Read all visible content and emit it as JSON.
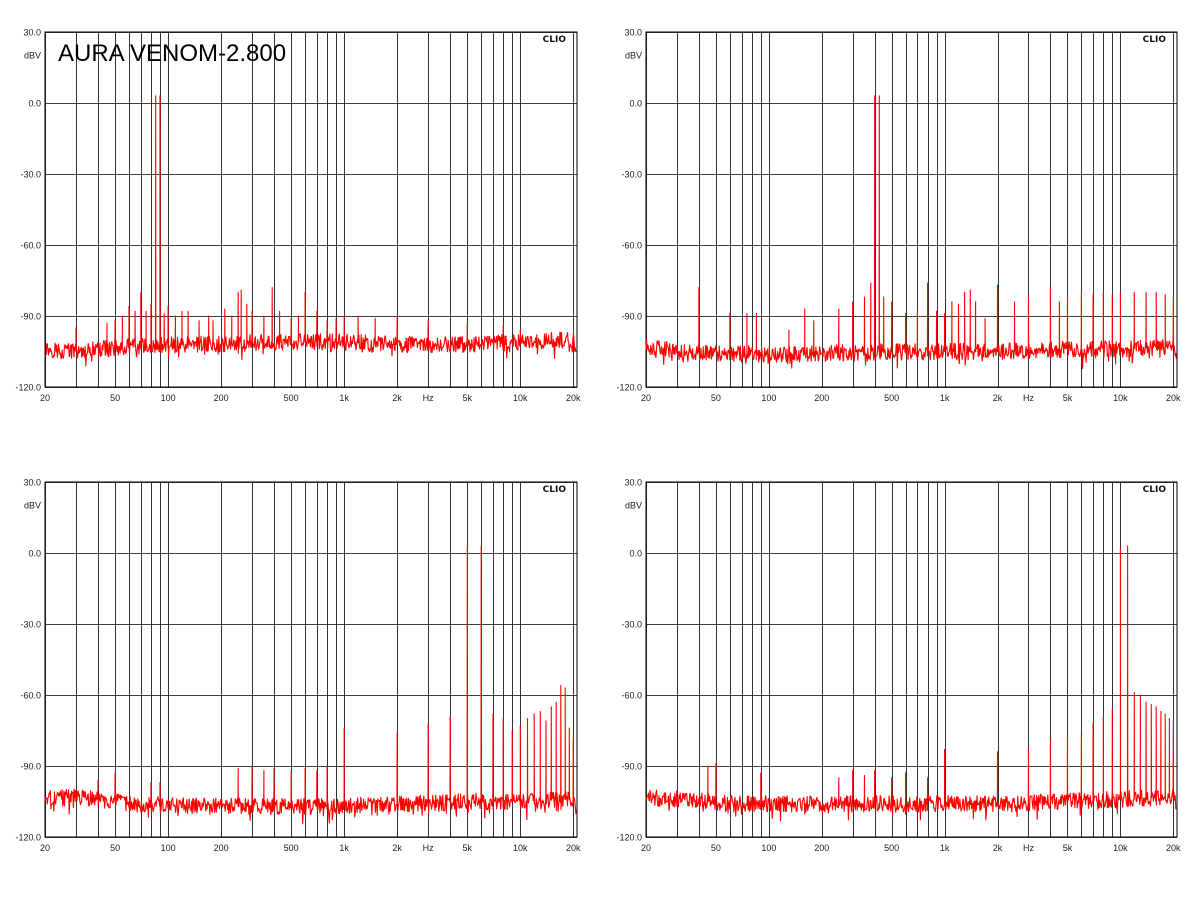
{
  "figure_title": "AURA VENOM-2.800",
  "brand_label": "CLIO",
  "colors": {
    "trace": "#ff0000",
    "grid": "#000000",
    "background": "#ffffff",
    "text": "#222222"
  },
  "y_tick_labels": [
    "30.0",
    "0.0",
    "-30.0",
    "-60.0",
    "-90.0",
    "-120.0"
  ],
  "y_unit_label": "dBV",
  "x_tick_labels": [
    "20",
    "50",
    "100",
    "200",
    "500",
    "1k",
    "2k",
    "Hz",
    "5k",
    "10k",
    "20k"
  ],
  "chart_data": [
    {
      "type": "line",
      "title": "AURA VENOM-2.800",
      "ylabel": "dBV",
      "xlabel": "Hz",
      "x_scale": "log",
      "xlim": [
        20,
        21000
      ],
      "ylim": [
        -120,
        30
      ],
      "grid": true,
      "legend": "none",
      "series": [
        {
          "color": "#ff0000",
          "floor": [
            [
              20,
              -104
            ],
            [
              30,
              -105
            ],
            [
              60,
              -103
            ],
            [
              150,
              -102
            ],
            [
              500,
              -101
            ],
            [
              1000,
              -101
            ],
            [
              2000,
              -102
            ],
            [
              5000,
              -102
            ],
            [
              10000,
              -101
            ],
            [
              20000,
              -100
            ],
            [
              21000,
              -104
            ]
          ],
          "peaks": [
            [
              85,
              3
            ],
            [
              90,
              3
            ],
            [
              30,
              -95
            ],
            [
              45,
              -93
            ],
            [
              50,
              -92
            ],
            [
              55,
              -90
            ],
            [
              60,
              -86
            ],
            [
              65,
              -88
            ],
            [
              70,
              -80
            ],
            [
              75,
              -88
            ],
            [
              80,
              -85
            ],
            [
              95,
              -89
            ],
            [
              100,
              -86
            ],
            [
              110,
              -90
            ],
            [
              120,
              -88
            ],
            [
              130,
              -88
            ],
            [
              150,
              -92
            ],
            [
              170,
              -90
            ],
            [
              180,
              -92
            ],
            [
              210,
              -87
            ],
            [
              230,
              -90
            ],
            [
              250,
              -80
            ],
            [
              260,
              -79
            ],
            [
              280,
              -85
            ],
            [
              300,
              -88
            ],
            [
              350,
              -90
            ],
            [
              390,
              -78
            ],
            [
              430,
              -88
            ],
            [
              500,
              -91
            ],
            [
              550,
              -90
            ],
            [
              600,
              -80
            ],
            [
              700,
              -88
            ],
            [
              800,
              -92
            ],
            [
              900,
              -91
            ],
            [
              1000,
              -90
            ],
            [
              1200,
              -90
            ],
            [
              1500,
              -91
            ],
            [
              2000,
              -90
            ],
            [
              3000,
              -92
            ],
            [
              5000,
              -93
            ],
            [
              8000,
              -94
            ],
            [
              10000,
              -96
            ],
            [
              15000,
              -97
            ],
            [
              20000,
              -98
            ]
          ]
        }
      ]
    },
    {
      "type": "line",
      "ylabel": "dBV",
      "xlabel": "Hz",
      "x_scale": "log",
      "xlim": [
        20,
        21000
      ],
      "ylim": [
        -120,
        30
      ],
      "grid": true,
      "legend": "none",
      "series": [
        {
          "color": "#ff0000",
          "floor": [
            [
              20,
              -103
            ],
            [
              30,
              -105
            ],
            [
              60,
              -106
            ],
            [
              150,
              -106
            ],
            [
              500,
              -105
            ],
            [
              1000,
              -105
            ],
            [
              2000,
              -105
            ],
            [
              5000,
              -104
            ],
            [
              10000,
              -104
            ],
            [
              20000,
              -103
            ],
            [
              21000,
              -106
            ]
          ],
          "peaks": [
            [
              400,
              3
            ],
            [
              425,
              3
            ],
            [
              40,
              -78
            ],
            [
              60,
              -89
            ],
            [
              75,
              -89
            ],
            [
              85,
              -89
            ],
            [
              130,
              -96
            ],
            [
              160,
              -87
            ],
            [
              180,
              -92
            ],
            [
              250,
              -87
            ],
            [
              300,
              -84
            ],
            [
              350,
              -82
            ],
            [
              380,
              -76
            ],
            [
              450,
              -82
            ],
            [
              500,
              -84
            ],
            [
              600,
              -89
            ],
            [
              700,
              -88
            ],
            [
              800,
              -76
            ],
            [
              900,
              -88
            ],
            [
              1000,
              -89
            ],
            [
              1100,
              -84
            ],
            [
              1200,
              -85
            ],
            [
              1300,
              -80
            ],
            [
              1400,
              -79
            ],
            [
              1500,
              -84
            ],
            [
              1700,
              -91
            ],
            [
              2000,
              -77
            ],
            [
              2500,
              -84
            ],
            [
              3000,
              -82
            ],
            [
              4000,
              -78
            ],
            [
              4500,
              -84
            ],
            [
              5000,
              -82
            ],
            [
              6000,
              -80
            ],
            [
              7000,
              -81
            ],
            [
              8000,
              -80
            ],
            [
              9000,
              -81
            ],
            [
              10000,
              -80
            ],
            [
              12000,
              -80
            ],
            [
              14000,
              -80
            ],
            [
              16000,
              -80
            ],
            [
              18000,
              -81
            ],
            [
              20000,
              -82
            ]
          ]
        }
      ]
    },
    {
      "type": "line",
      "ylabel": "dBV",
      "xlabel": "Hz",
      "x_scale": "log",
      "xlim": [
        20,
        21000
      ],
      "ylim": [
        -120,
        30
      ],
      "grid": true,
      "legend": "none",
      "series": [
        {
          "color": "#ff0000",
          "floor": [
            [
              20,
              -104
            ],
            [
              30,
              -103
            ],
            [
              60,
              -106
            ],
            [
              150,
              -107
            ],
            [
              500,
              -107
            ],
            [
              1000,
              -107
            ],
            [
              2000,
              -106
            ],
            [
              5000,
              -105
            ],
            [
              10000,
              -105
            ],
            [
              20000,
              -104
            ],
            [
              21000,
              -107
            ]
          ],
          "peaks": [
            [
              5000,
              3
            ],
            [
              6000,
              3
            ],
            [
              40,
              -96
            ],
            [
              50,
              -93
            ],
            [
              80,
              -97
            ],
            [
              90,
              -97
            ],
            [
              250,
              -91
            ],
            [
              300,
              -90
            ],
            [
              350,
              -92
            ],
            [
              400,
              -91
            ],
            [
              500,
              -92
            ],
            [
              600,
              -91
            ],
            [
              700,
              -92
            ],
            [
              800,
              -90
            ],
            [
              1000,
              -74
            ],
            [
              2000,
              -76
            ],
            [
              3000,
              -72
            ],
            [
              4000,
              -69
            ],
            [
              7000,
              -68
            ],
            [
              8000,
              -70
            ],
            [
              9000,
              -75
            ],
            [
              10000,
              -73
            ],
            [
              11000,
              -70
            ],
            [
              12000,
              -68
            ],
            [
              13000,
              -67
            ],
            [
              14000,
              -71
            ],
            [
              15000,
              -65
            ],
            [
              16000,
              -63
            ],
            [
              17000,
              -56
            ],
            [
              18000,
              -57
            ],
            [
              19000,
              -74
            ],
            [
              20000,
              -78
            ]
          ]
        }
      ]
    },
    {
      "type": "line",
      "ylabel": "dBV",
      "xlabel": "Hz",
      "x_scale": "log",
      "xlim": [
        20,
        21000
      ],
      "ylim": [
        -120,
        30
      ],
      "grid": true,
      "legend": "none",
      "series": [
        {
          "color": "#ff0000",
          "floor": [
            [
              20,
              -103
            ],
            [
              30,
              -104
            ],
            [
              60,
              -106
            ],
            [
              150,
              -106
            ],
            [
              500,
              -106
            ],
            [
              1000,
              -106
            ],
            [
              2000,
              -106
            ],
            [
              5000,
              -105
            ],
            [
              10000,
              -104
            ],
            [
              20000,
              -103
            ],
            [
              21000,
              -106
            ]
          ],
          "peaks": [
            [
              10000,
              2
            ],
            [
              11000,
              3
            ],
            [
              45,
              -90
            ],
            [
              50,
              -89
            ],
            [
              90,
              -93
            ],
            [
              250,
              -95
            ],
            [
              300,
              -92
            ],
            [
              350,
              -94
            ],
            [
              400,
              -92
            ],
            [
              500,
              -95
            ],
            [
              600,
              -93
            ],
            [
              800,
              -95
            ],
            [
              1000,
              -83
            ],
            [
              2000,
              -84
            ],
            [
              3000,
              -83
            ],
            [
              4000,
              -79
            ],
            [
              5000,
              -78
            ],
            [
              6000,
              -77
            ],
            [
              7000,
              -72
            ],
            [
              8000,
              -69
            ],
            [
              9000,
              -66
            ],
            [
              12000,
              -59
            ],
            [
              13000,
              -60
            ],
            [
              14000,
              -63
            ],
            [
              15000,
              -64
            ],
            [
              16000,
              -65
            ],
            [
              17000,
              -67
            ],
            [
              18000,
              -68
            ],
            [
              19000,
              -70
            ],
            [
              20000,
              -71
            ]
          ]
        }
      ]
    }
  ]
}
